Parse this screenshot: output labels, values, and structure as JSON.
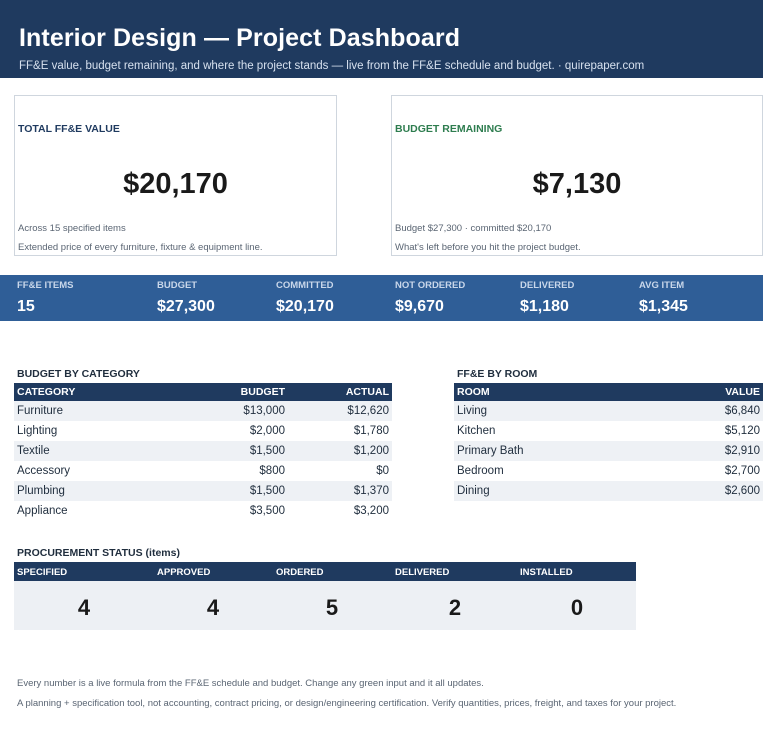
{
  "header": {
    "title": "Interior Design — Project Dashboard",
    "subtitle": "FF&E value, budget remaining, and where the project stands — live from the FF&E schedule and budget.  ·  quirepaper.com"
  },
  "cards": {
    "total": {
      "title": "TOTAL FF&E VALUE",
      "value": "$20,170",
      "note1": "Across 15 specified items",
      "note2": "Extended price of every furniture, fixture & equipment line."
    },
    "remaining": {
      "title": "BUDGET REMAINING",
      "value": "$7,130",
      "note1": "Budget $27,300  ·  committed $20,170",
      "note2": "What's left before you hit the project budget."
    }
  },
  "stats": [
    {
      "label": "FF&E ITEMS",
      "value": "15"
    },
    {
      "label": "BUDGET",
      "value": "$27,300"
    },
    {
      "label": "COMMITTED",
      "value": "$20,170"
    },
    {
      "label": "NOT ORDERED",
      "value": "$9,670"
    },
    {
      "label": "DELIVERED",
      "value": "$1,180"
    },
    {
      "label": "AVG ITEM",
      "value": "$1,345"
    }
  ],
  "budget_by_category": {
    "title": "BUDGET BY CATEGORY",
    "columns": [
      "CATEGORY",
      "BUDGET",
      "ACTUAL"
    ],
    "rows": [
      {
        "category": "Furniture",
        "budget": "$13,000",
        "actual": "$12,620"
      },
      {
        "category": "Lighting",
        "budget": "$2,000",
        "actual": "$1,780"
      },
      {
        "category": "Textile",
        "budget": "$1,500",
        "actual": "$1,200"
      },
      {
        "category": "Accessory",
        "budget": "$800",
        "actual": "$0"
      },
      {
        "category": "Plumbing",
        "budget": "$1,500",
        "actual": "$1,370"
      },
      {
        "category": "Appliance",
        "budget": "$3,500",
        "actual": "$3,200"
      }
    ]
  },
  "ffe_by_room": {
    "title": "FF&E BY ROOM",
    "columns": [
      "ROOM",
      "VALUE"
    ],
    "rows": [
      {
        "room": "Living",
        "value": "$6,840"
      },
      {
        "room": "Kitchen",
        "value": "$5,120"
      },
      {
        "room": "Primary Bath",
        "value": "$2,910"
      },
      {
        "room": "Bedroom",
        "value": "$2,700"
      },
      {
        "room": "Dining",
        "value": "$2,600"
      }
    ]
  },
  "procurement": {
    "title": "PROCUREMENT STATUS (items)",
    "stages": [
      {
        "label": "SPECIFIED",
        "value": "4"
      },
      {
        "label": "APPROVED",
        "value": "4"
      },
      {
        "label": "ORDERED",
        "value": "5"
      },
      {
        "label": "DELIVERED",
        "value": "2"
      },
      {
        "label": "INSTALLED",
        "value": "0"
      }
    ]
  },
  "footer": {
    "line1": "Every number is a live formula from the FF&E schedule and budget. Change any green input and it all updates.",
    "line2": "A planning + specification tool, not accounting, contract pricing, or design/engineering certification. Verify quantities, prices, freight, and taxes for your project."
  },
  "colors": {
    "navy": "#1f3a5f",
    "strip_blue": "#2f5e97",
    "green_accent": "#2e7d4f",
    "row_alt": "#eef1f5"
  }
}
